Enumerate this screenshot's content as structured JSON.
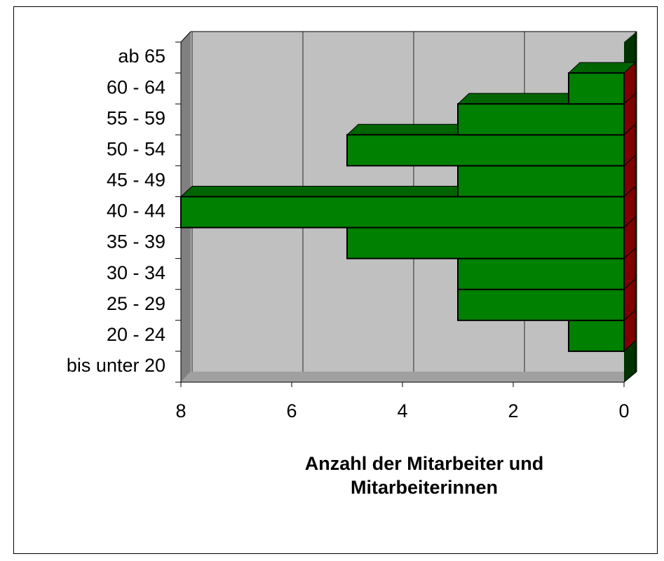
{
  "chart_data": {
    "type": "bar",
    "orientation": "horizontal",
    "three_d": true,
    "categories": [
      "bis unter 20",
      "20 - 24",
      "25 - 29",
      "30 - 34",
      "35 - 39",
      "40 - 44",
      "45 - 49",
      "50 - 54",
      "55 - 59",
      "60 - 64",
      "ab 65"
    ],
    "values": [
      0,
      1,
      3,
      3,
      5,
      8,
      3,
      5,
      3,
      1,
      0
    ],
    "color": "#008000",
    "top_color": "#006400",
    "side_color": "#800000",
    "xlim": [
      8,
      0
    ],
    "xticks": [
      8,
      6,
      4,
      2,
      0
    ],
    "grid": true,
    "xlabel": [
      "Anzahl der Mitarbeiter und",
      "Mitarbeiterinnen"
    ]
  }
}
